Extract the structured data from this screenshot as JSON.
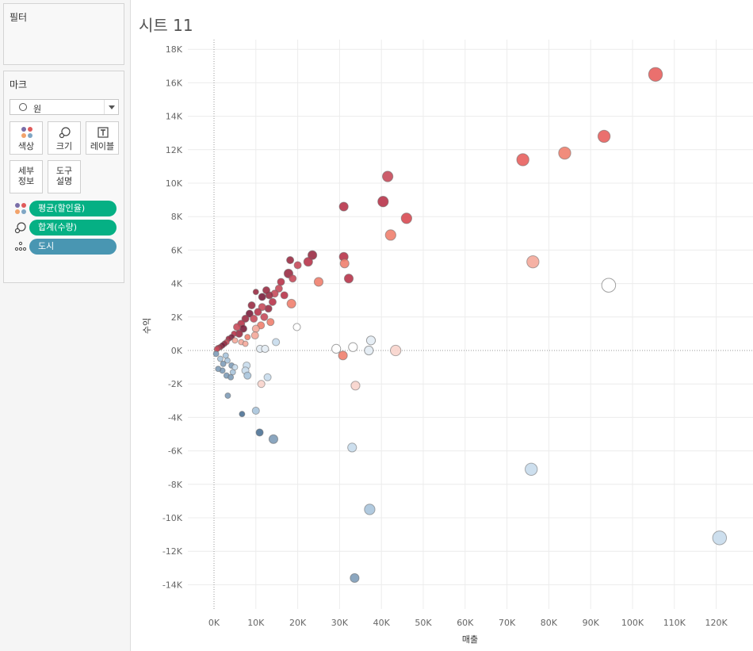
{
  "sidebar": {
    "filters": {
      "title": "필터"
    },
    "marks": {
      "title": "마크",
      "mark_type": "원",
      "buttons": {
        "color": "색상",
        "size": "크기",
        "label": "레이블",
        "detail": "세부\n정보",
        "tooltip": "도구\n설명"
      },
      "fields": [
        {
          "label": "평균(할인율)",
          "encoding": "color-icon",
          "color": "#05b084"
        },
        {
          "label": "합계(수량)",
          "encoding": "size-icon",
          "color": "#05b084"
        },
        {
          "label": "도시",
          "encoding": "detail-icon",
          "color": "#4996b2"
        }
      ]
    }
  },
  "sheet": {
    "title": "시트 11"
  },
  "chart_data": {
    "type": "scatter",
    "xlabel": "매출",
    "ylabel": "수익",
    "xlim": [
      -6000,
      128000
    ],
    "ylim": [
      -15500,
      18600
    ],
    "x_ticks": [
      0,
      10000,
      20000,
      30000,
      40000,
      50000,
      60000,
      70000,
      80000,
      90000,
      100000,
      110000,
      120000
    ],
    "x_tick_labels": [
      "0K",
      "10K",
      "20K",
      "30K",
      "40K",
      "50K",
      "60K",
      "70K",
      "80K",
      "90K",
      "100K",
      "110K",
      "120K"
    ],
    "y_ticks": [
      18000,
      16000,
      14000,
      12000,
      10000,
      8000,
      6000,
      4000,
      2000,
      0,
      -2000,
      -4000,
      -6000,
      -8000,
      -10000,
      -12000,
      -14000
    ],
    "y_tick_labels": [
      "18K",
      "16K",
      "14K",
      "12K",
      "10K",
      "8K",
      "6K",
      "4K",
      "2K",
      "0K",
      "-2K",
      "-4K",
      "-6K",
      "-8K",
      "-10K",
      "-12K",
      "-14K"
    ],
    "grid": true,
    "color_encoding": "평균(할인율)",
    "size_encoding": "합계(수량)",
    "detail": "도시",
    "palette": {
      "positive_dark": "#7a1e3c",
      "positive_mid": "#e05a5a",
      "positive_light": "#f4a99a",
      "neutral": "#ffffff",
      "negative_light": "#c8dcec",
      "negative_dark": "#4d7296"
    },
    "points": [
      {
        "x": 105500,
        "y": 16500,
        "size": 7,
        "color": "#e8605e"
      },
      {
        "x": 93200,
        "y": 12800,
        "size": 6,
        "color": "#e8605e"
      },
      {
        "x": 83800,
        "y": 11800,
        "size": 6,
        "color": "#ef7f6e"
      },
      {
        "x": 73800,
        "y": 11400,
        "size": 6,
        "color": "#e8605e"
      },
      {
        "x": 41500,
        "y": 10400,
        "size": 5,
        "color": "#c74a5a"
      },
      {
        "x": 40400,
        "y": 8900,
        "size": 5,
        "color": "#b8344a"
      },
      {
        "x": 46000,
        "y": 7900,
        "size": 5,
        "color": "#d84a52"
      },
      {
        "x": 31000,
        "y": 8600,
        "size": 4,
        "color": "#b8344a"
      },
      {
        "x": 42200,
        "y": 6900,
        "size": 5,
        "color": "#ef7f6e"
      },
      {
        "x": 76200,
        "y": 5300,
        "size": 6,
        "color": "#f4a99a"
      },
      {
        "x": 94300,
        "y": 3900,
        "size": 7,
        "color": "#ffffff"
      },
      {
        "x": 31000,
        "y": 5600,
        "size": 4,
        "color": "#b8344a"
      },
      {
        "x": 31200,
        "y": 5200,
        "size": 4,
        "color": "#ef7f6e"
      },
      {
        "x": 32200,
        "y": 4300,
        "size": 4,
        "color": "#b8344a"
      },
      {
        "x": 23500,
        "y": 5700,
        "size": 4,
        "color": "#9a2c44"
      },
      {
        "x": 22500,
        "y": 5300,
        "size": 4,
        "color": "#b8344a"
      },
      {
        "x": 25000,
        "y": 4100,
        "size": 4,
        "color": "#ef7f6e"
      },
      {
        "x": 20000,
        "y": 5100,
        "size": 3,
        "color": "#c74a5a"
      },
      {
        "x": 18200,
        "y": 5400,
        "size": 3,
        "color": "#9a2c44"
      },
      {
        "x": 17800,
        "y": 4600,
        "size": 4,
        "color": "#9a2c44"
      },
      {
        "x": 18800,
        "y": 4300,
        "size": 3,
        "color": "#c74a5a"
      },
      {
        "x": 16000,
        "y": 4100,
        "size": 3,
        "color": "#b8344a"
      },
      {
        "x": 15500,
        "y": 3700,
        "size": 3,
        "color": "#c74a5a"
      },
      {
        "x": 18500,
        "y": 2800,
        "size": 4,
        "color": "#ef7f6e"
      },
      {
        "x": 16800,
        "y": 3300,
        "size": 3,
        "color": "#b8344a"
      },
      {
        "x": 14500,
        "y": 3400,
        "size": 3,
        "color": "#c74a5a"
      },
      {
        "x": 13200,
        "y": 3300,
        "size": 3,
        "color": "#9a2c44"
      },
      {
        "x": 12500,
        "y": 3600,
        "size": 3,
        "color": "#9a2c44"
      },
      {
        "x": 11500,
        "y": 3200,
        "size": 3,
        "color": "#7a1e3c"
      },
      {
        "x": 10000,
        "y": 3500,
        "size": 2,
        "color": "#9a2c44"
      },
      {
        "x": 14000,
        "y": 2900,
        "size": 3,
        "color": "#b8344a"
      },
      {
        "x": 13000,
        "y": 2500,
        "size": 3,
        "color": "#9a2c44"
      },
      {
        "x": 11500,
        "y": 2600,
        "size": 3,
        "color": "#c74a5a"
      },
      {
        "x": 10500,
        "y": 2300,
        "size": 3,
        "color": "#b8344a"
      },
      {
        "x": 9000,
        "y": 2700,
        "size": 3,
        "color": "#9a2c44"
      },
      {
        "x": 8500,
        "y": 2200,
        "size": 3,
        "color": "#7a1e3c"
      },
      {
        "x": 9500,
        "y": 1900,
        "size": 3,
        "color": "#c74a5a"
      },
      {
        "x": 12000,
        "y": 2000,
        "size": 3,
        "color": "#c74a5a"
      },
      {
        "x": 13500,
        "y": 1700,
        "size": 3,
        "color": "#ef7f6e"
      },
      {
        "x": 11200,
        "y": 1500,
        "size": 3,
        "color": "#ef7f6e"
      },
      {
        "x": 10000,
        "y": 1300,
        "size": 3,
        "color": "#f4a99a"
      },
      {
        "x": 7500,
        "y": 1900,
        "size": 3,
        "color": "#9a2c44"
      },
      {
        "x": 6500,
        "y": 1600,
        "size": 3,
        "color": "#b8344a"
      },
      {
        "x": 7000,
        "y": 1300,
        "size": 3,
        "color": "#7a1e3c"
      },
      {
        "x": 5500,
        "y": 1400,
        "size": 3,
        "color": "#c74a5a"
      },
      {
        "x": 6000,
        "y": 1000,
        "size": 3,
        "color": "#9a2c44"
      },
      {
        "x": 4800,
        "y": 1000,
        "size": 2,
        "color": "#b8344a"
      },
      {
        "x": 4200,
        "y": 800,
        "size": 2,
        "color": "#7a1e3c"
      },
      {
        "x": 3500,
        "y": 700,
        "size": 2,
        "color": "#9a2c44"
      },
      {
        "x": 3000,
        "y": 500,
        "size": 2,
        "color": "#c74a5a"
      },
      {
        "x": 2500,
        "y": 400,
        "size": 2,
        "color": "#9a2c44"
      },
      {
        "x": 2000,
        "y": 300,
        "size": 2,
        "color": "#7a1e3c"
      },
      {
        "x": 1500,
        "y": 200,
        "size": 2,
        "color": "#9a2c44"
      },
      {
        "x": 1000,
        "y": 150,
        "size": 2,
        "color": "#b8344a"
      },
      {
        "x": 700,
        "y": 80,
        "size": 2,
        "color": "#c74a5a"
      },
      {
        "x": 5000,
        "y": 600,
        "size": 2,
        "color": "#f4a99a"
      },
      {
        "x": 6500,
        "y": 500,
        "size": 2,
        "color": "#f4a99a"
      },
      {
        "x": 8000,
        "y": 800,
        "size": 2,
        "color": "#ef7f6e"
      },
      {
        "x": 7500,
        "y": 400,
        "size": 2,
        "color": "#f4a99a"
      },
      {
        "x": 9800,
        "y": 900,
        "size": 3,
        "color": "#f4a99a"
      },
      {
        "x": 19800,
        "y": 1400,
        "size": 3,
        "color": "#ffffff"
      },
      {
        "x": 14800,
        "y": 500,
        "size": 3,
        "color": "#c8dcec"
      },
      {
        "x": 11000,
        "y": 100,
        "size": 3,
        "color": "#e6eef5"
      },
      {
        "x": 12200,
        "y": 100,
        "size": 3,
        "color": "#e6eef5"
      },
      {
        "x": 29200,
        "y": 100,
        "size": 4,
        "color": "#ffffff"
      },
      {
        "x": 33200,
        "y": 200,
        "size": 4,
        "color": "#ffffff"
      },
      {
        "x": 37500,
        "y": 600,
        "size": 4,
        "color": "#e6eef5"
      },
      {
        "x": 37000,
        "y": 0,
        "size": 4,
        "color": "#e6eef5"
      },
      {
        "x": 43400,
        "y": 0,
        "size": 5,
        "color": "#f8d4cc"
      },
      {
        "x": 30800,
        "y": -300,
        "size": 4,
        "color": "#ef7f6e"
      },
      {
        "x": 33800,
        "y": -2100,
        "size": 4,
        "color": "#f8d4cc"
      },
      {
        "x": 11300,
        "y": -2000,
        "size": 3,
        "color": "#f8d4cc"
      },
      {
        "x": 12800,
        "y": -1600,
        "size": 3,
        "color": "#c8dcec"
      },
      {
        "x": 7800,
        "y": -900,
        "size": 3,
        "color": "#c8dcec"
      },
      {
        "x": 7500,
        "y": -1200,
        "size": 3,
        "color": "#c8dcec"
      },
      {
        "x": 8000,
        "y": -1500,
        "size": 3,
        "color": "#a8c4dc"
      },
      {
        "x": 4500,
        "y": -1300,
        "size": 2,
        "color": "#a8c4dc"
      },
      {
        "x": 4200,
        "y": -900,
        "size": 2,
        "color": "#7e9cb8"
      },
      {
        "x": 3200,
        "y": -600,
        "size": 2,
        "color": "#a8c4dc"
      },
      {
        "x": 2800,
        "y": -300,
        "size": 2,
        "color": "#a8c4dc"
      },
      {
        "x": 2200,
        "y": -800,
        "size": 2,
        "color": "#7e9cb8"
      },
      {
        "x": 1500,
        "y": -500,
        "size": 2,
        "color": "#a8c4dc"
      },
      {
        "x": 5000,
        "y": -1000,
        "size": 2,
        "color": "#c8dcec"
      },
      {
        "x": 3000,
        "y": -1500,
        "size": 2,
        "color": "#7e9cb8"
      },
      {
        "x": 4000,
        "y": -1600,
        "size": 2,
        "color": "#7e9cb8"
      },
      {
        "x": 2000,
        "y": -1200,
        "size": 2,
        "color": "#7e9cb8"
      },
      {
        "x": 1000,
        "y": -1100,
        "size": 2,
        "color": "#7e9cb8"
      },
      {
        "x": 500,
        "y": -200,
        "size": 2,
        "color": "#7e9cb8"
      },
      {
        "x": 3300,
        "y": -2700,
        "size": 2,
        "color": "#7e9cb8"
      },
      {
        "x": 6700,
        "y": -3800,
        "size": 2,
        "color": "#4d7296"
      },
      {
        "x": 10000,
        "y": -3600,
        "size": 3,
        "color": "#a8c4dc"
      },
      {
        "x": 10900,
        "y": -4900,
        "size": 3,
        "color": "#4d7296"
      },
      {
        "x": 14200,
        "y": -5300,
        "size": 4,
        "color": "#7e9cb8"
      },
      {
        "x": 33000,
        "y": -5800,
        "size": 4,
        "color": "#c8dcec"
      },
      {
        "x": 75800,
        "y": -7100,
        "size": 6,
        "color": "#c8dcec"
      },
      {
        "x": 37200,
        "y": -9500,
        "size": 5,
        "color": "#a8c4dc"
      },
      {
        "x": 120800,
        "y": -11200,
        "size": 7,
        "color": "#c8dcec"
      },
      {
        "x": 33600,
        "y": -13600,
        "size": 4,
        "color": "#7e9cb8"
      }
    ]
  }
}
